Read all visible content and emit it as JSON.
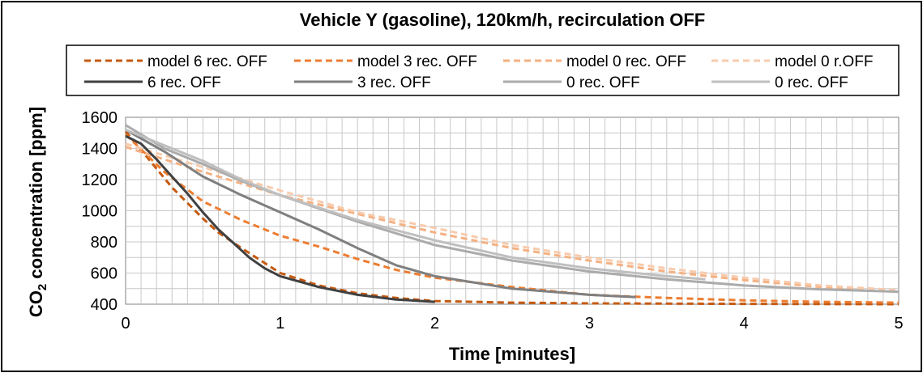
{
  "chart_data": {
    "type": "line",
    "title": "Vehicle Y (gasoline), 120km/h, recirculation OFF",
    "xlabel": "Time [minutes]",
    "ylabel_parts": [
      "CO",
      "2",
      " concentration [ppm]"
    ],
    "xlim": [
      0,
      5
    ],
    "ylim": [
      400,
      1600
    ],
    "x_ticks": [
      "0",
      "1",
      "2",
      "3",
      "4",
      "5"
    ],
    "y_ticks": [
      "400",
      "600",
      "800",
      "1000",
      "1200",
      "1400",
      "1600"
    ],
    "grid": true,
    "legend_position": "top",
    "series": [
      {
        "name": "model 6 rec. OFF",
        "style": "dashed",
        "color": "#C55A11",
        "points": [
          [
            0,
            1510
          ],
          [
            0.1,
            1390
          ],
          [
            0.2,
            1270
          ],
          [
            0.3,
            1150
          ],
          [
            0.4,
            1050
          ],
          [
            0.5,
            950
          ],
          [
            0.6,
            860
          ],
          [
            0.75,
            760
          ],
          [
            1.0,
            600
          ],
          [
            1.25,
            520
          ],
          [
            1.5,
            470
          ],
          [
            1.75,
            440
          ],
          [
            2.0,
            420
          ],
          [
            2.5,
            410
          ],
          [
            3.0,
            405
          ],
          [
            4.0,
            402
          ],
          [
            5.0,
            400
          ]
        ]
      },
      {
        "name": "model 3 rec. OFF",
        "style": "dashed",
        "color": "#ED7D31",
        "points": [
          [
            0,
            1490
          ],
          [
            0.25,
            1250
          ],
          [
            0.5,
            1060
          ],
          [
            0.75,
            940
          ],
          [
            1.0,
            840
          ],
          [
            1.25,
            770
          ],
          [
            1.5,
            690
          ],
          [
            1.75,
            620
          ],
          [
            2.0,
            570
          ],
          [
            2.5,
            510
          ],
          [
            3.0,
            460
          ],
          [
            3.5,
            440
          ],
          [
            4.0,
            425
          ],
          [
            4.5,
            415
          ],
          [
            5.0,
            410
          ]
        ]
      },
      {
        "name": "model 0 rec. OFF",
        "style": "dashed",
        "color": "#F4B183",
        "points": [
          [
            0,
            1410
          ],
          [
            0.5,
            1250
          ],
          [
            1.0,
            1100
          ],
          [
            1.5,
            980
          ],
          [
            2.0,
            860
          ],
          [
            2.5,
            760
          ],
          [
            3.0,
            680
          ],
          [
            3.5,
            610
          ],
          [
            4.0,
            555
          ],
          [
            4.5,
            510
          ],
          [
            5.0,
            480
          ]
        ]
      },
      {
        "name": "model 0 r.OFF",
        "style": "dashed",
        "color": "#F8CBAD",
        "points": [
          [
            0,
            1430
          ],
          [
            0.5,
            1280
          ],
          [
            1.0,
            1130
          ],
          [
            1.5,
            990
          ],
          [
            2.0,
            890
          ],
          [
            2.5,
            780
          ],
          [
            3.0,
            700
          ],
          [
            3.5,
            630
          ],
          [
            4.0,
            570
          ],
          [
            4.5,
            520
          ],
          [
            5.0,
            490
          ]
        ]
      },
      {
        "name": "6 rec. OFF",
        "style": "solid",
        "color": "#404040",
        "points": [
          [
            0,
            1480
          ],
          [
            0.1,
            1430
          ],
          [
            0.2,
            1330
          ],
          [
            0.3,
            1220
          ],
          [
            0.4,
            1110
          ],
          [
            0.5,
            990
          ],
          [
            0.6,
            880
          ],
          [
            0.7,
            790
          ],
          [
            0.8,
            700
          ],
          [
            0.9,
            630
          ],
          [
            1.0,
            580
          ],
          [
            1.25,
            510
          ],
          [
            1.5,
            460
          ],
          [
            1.75,
            430
          ],
          [
            2.0,
            415
          ]
        ]
      },
      {
        "name": "3 rec. OFF",
        "style": "solid",
        "color": "#7F7F7F",
        "points": [
          [
            0,
            1520
          ],
          [
            0.25,
            1380
          ],
          [
            0.5,
            1220
          ],
          [
            0.75,
            1100
          ],
          [
            1.0,
            990
          ],
          [
            1.25,
            880
          ],
          [
            1.5,
            760
          ],
          [
            1.75,
            650
          ],
          [
            2.0,
            580
          ],
          [
            2.5,
            500
          ],
          [
            3.0,
            460
          ],
          [
            3.3,
            445
          ]
        ]
      },
      {
        "name": "0 rec. OFF",
        "style": "solid",
        "color": "#ABABAB",
        "points": [
          [
            0,
            1550
          ],
          [
            0.25,
            1400
          ],
          [
            0.5,
            1300
          ],
          [
            0.75,
            1190
          ],
          [
            1.0,
            1100
          ],
          [
            1.5,
            930
          ],
          [
            2.0,
            780
          ],
          [
            2.5,
            680
          ],
          [
            3.0,
            610
          ],
          [
            3.5,
            560
          ],
          [
            4.0,
            520
          ],
          [
            4.5,
            495
          ],
          [
            5.0,
            480
          ]
        ]
      },
      {
        "name": "0 rec. OFF",
        "style": "solid",
        "color": "#BFBFBF",
        "points": [
          [
            0,
            1520
          ],
          [
            0.25,
            1420
          ],
          [
            0.5,
            1320
          ],
          [
            0.75,
            1200
          ],
          [
            1.0,
            1100
          ],
          [
            1.5,
            940
          ],
          [
            2.0,
            810
          ],
          [
            2.5,
            700
          ],
          [
            3.0,
            630
          ],
          [
            3.5,
            580
          ],
          [
            3.75,
            560
          ]
        ]
      }
    ]
  }
}
